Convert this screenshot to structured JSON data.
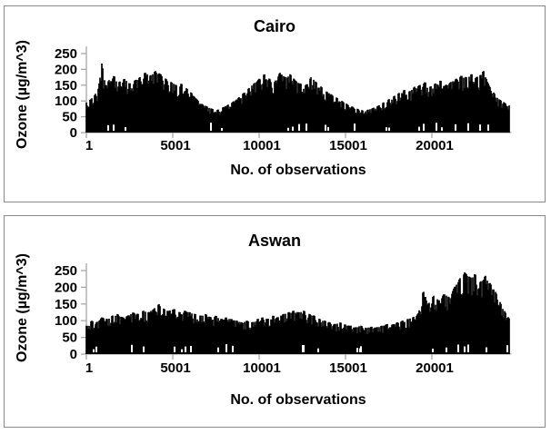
{
  "window": {
    "background": "#ffffff",
    "panel_border_color": "#898989"
  },
  "chart_data": [
    {
      "type": "area",
      "title": "Cairo",
      "xlabel": "No. of observations",
      "ylabel": "Ozone (µg/m^3)",
      "x_tick_values": [
        1,
        5001,
        10001,
        15001,
        20001
      ],
      "x_tick_labels": [
        "1",
        "5001",
        "10001",
        "15001",
        "20001"
      ],
      "y_ticks": [
        0,
        50,
        100,
        150,
        200,
        250
      ],
      "xlim": [
        1,
        24500
      ],
      "ylim": [
        0,
        250
      ],
      "grid": false,
      "legend": "none",
      "axis_color": "#a6a6a6",
      "series_color": "#000000",
      "seed": 7,
      "envelope_points": [
        [
          1,
          95
        ],
        [
          250,
          105
        ],
        [
          500,
          120
        ],
        [
          700,
          140
        ],
        [
          900,
          220
        ],
        [
          1100,
          150
        ],
        [
          1300,
          165
        ],
        [
          1600,
          180
        ],
        [
          1900,
          160
        ],
        [
          2200,
          170
        ],
        [
          2500,
          155
        ],
        [
          2800,
          165
        ],
        [
          3100,
          175
        ],
        [
          3400,
          190
        ],
        [
          3700,
          180
        ],
        [
          4000,
          195
        ],
        [
          4300,
          185
        ],
        [
          4600,
          170
        ],
        [
          4900,
          160
        ],
        [
          5200,
          150
        ],
        [
          5500,
          155
        ],
        [
          5800,
          140
        ],
        [
          6100,
          125
        ],
        [
          6400,
          105
        ],
        [
          6700,
          90
        ],
        [
          7000,
          82
        ],
        [
          7300,
          75
        ],
        [
          7600,
          72
        ],
        [
          7900,
          80
        ],
        [
          8200,
          88
        ],
        [
          8500,
          98
        ],
        [
          8800,
          110
        ],
        [
          9100,
          125
        ],
        [
          9400,
          140
        ],
        [
          9700,
          155
        ],
        [
          10000,
          170
        ],
        [
          10300,
          185
        ],
        [
          10600,
          170
        ],
        [
          10900,
          160
        ],
        [
          11200,
          190
        ],
        [
          11500,
          175
        ],
        [
          11800,
          185
        ],
        [
          12100,
          165
        ],
        [
          12400,
          155
        ],
        [
          12700,
          150
        ],
        [
          13000,
          175
        ],
        [
          13300,
          160
        ],
        [
          13600,
          145
        ],
        [
          13900,
          130
        ],
        [
          14200,
          120
        ],
        [
          14500,
          110
        ],
        [
          14800,
          100
        ],
        [
          15100,
          90
        ],
        [
          15400,
          82
        ],
        [
          15700,
          75
        ],
        [
          16000,
          70
        ],
        [
          16300,
          72
        ],
        [
          16600,
          78
        ],
        [
          16900,
          85
        ],
        [
          17200,
          95
        ],
        [
          17500,
          105
        ],
        [
          17800,
          115
        ],
        [
          18100,
          125
        ],
        [
          18400,
          135
        ],
        [
          18700,
          130
        ],
        [
          19000,
          145
        ],
        [
          19300,
          150
        ],
        [
          19600,
          160
        ],
        [
          19900,
          145
        ],
        [
          20200,
          155
        ],
        [
          20500,
          165
        ],
        [
          20800,
          150
        ],
        [
          21100,
          160
        ],
        [
          21400,
          170
        ],
        [
          21700,
          180
        ],
        [
          22000,
          175
        ],
        [
          22300,
          185
        ],
        [
          22600,
          175
        ],
        [
          23000,
          195
        ],
        [
          23300,
          150
        ],
        [
          23600,
          125
        ],
        [
          23900,
          105
        ],
        [
          24200,
          95
        ],
        [
          24500,
          85
        ]
      ]
    },
    {
      "type": "area",
      "title": "Aswan",
      "xlabel": "No. of observations",
      "ylabel": "Ozone (µg/m^3)",
      "x_tick_values": [
        1,
        5001,
        10001,
        15001,
        20001
      ],
      "x_tick_labels": [
        "1",
        "5001",
        "10001",
        "15001",
        "20001"
      ],
      "y_ticks": [
        0,
        50,
        100,
        150,
        200,
        250
      ],
      "xlim": [
        1,
        24500
      ],
      "ylim": [
        0,
        250
      ],
      "grid": false,
      "legend": "none",
      "axis_color": "#a6a6a6",
      "series_color": "#000000",
      "seed": 13,
      "envelope_points": [
        [
          1,
          85
        ],
        [
          300,
          100
        ],
        [
          600,
          95
        ],
        [
          900,
          110
        ],
        [
          1200,
          105
        ],
        [
          1500,
          115
        ],
        [
          1800,
          120
        ],
        [
          2100,
          110
        ],
        [
          2400,
          115
        ],
        [
          2700,
          125
        ],
        [
          3000,
          120
        ],
        [
          3300,
          130
        ],
        [
          3600,
          125
        ],
        [
          3900,
          135
        ],
        [
          4200,
          150
        ],
        [
          4500,
          135
        ],
        [
          4800,
          130
        ],
        [
          5100,
          135
        ],
        [
          5400,
          125
        ],
        [
          5700,
          130
        ],
        [
          6000,
          125
        ],
        [
          6300,
          120
        ],
        [
          6600,
          115
        ],
        [
          6900,
          120
        ],
        [
          7200,
          110
        ],
        [
          7500,
          115
        ],
        [
          7800,
          105
        ],
        [
          8100,
          110
        ],
        [
          8400,
          105
        ],
        [
          8700,
          100
        ],
        [
          9000,
          95
        ],
        [
          9300,
          100
        ],
        [
          9600,
          95
        ],
        [
          9900,
          105
        ],
        [
          10200,
          110
        ],
        [
          10500,
          105
        ],
        [
          10800,
          115
        ],
        [
          11100,
          110
        ],
        [
          11400,
          120
        ],
        [
          11700,
          125
        ],
        [
          12000,
          130
        ],
        [
          12300,
          125
        ],
        [
          12600,
          130
        ],
        [
          12900,
          120
        ],
        [
          13200,
          115
        ],
        [
          13500,
          105
        ],
        [
          13800,
          100
        ],
        [
          14100,
          95
        ],
        [
          14400,
          90
        ],
        [
          14700,
          95
        ],
        [
          15000,
          88
        ],
        [
          15300,
          85
        ],
        [
          15600,
          80
        ],
        [
          15900,
          85
        ],
        [
          16200,
          78
        ],
        [
          16500,
          82
        ],
        [
          16800,
          80
        ],
        [
          17100,
          85
        ],
        [
          17400,
          90
        ],
        [
          17700,
          88
        ],
        [
          18000,
          95
        ],
        [
          18300,
          100
        ],
        [
          18600,
          105
        ],
        [
          18900,
          110
        ],
        [
          19200,
          120
        ],
        [
          19500,
          190
        ],
        [
          19800,
          150
        ],
        [
          20100,
          175
        ],
        [
          20400,
          160
        ],
        [
          20700,
          180
        ],
        [
          21000,
          170
        ],
        [
          21300,
          200
        ],
        [
          21600,
          225
        ],
        [
          21900,
          245
        ],
        [
          22200,
          230
        ],
        [
          22500,
          240
        ],
        [
          22800,
          215
        ],
        [
          23100,
          235
        ],
        [
          23400,
          210
        ],
        [
          23700,
          185
        ],
        [
          24000,
          150
        ],
        [
          24250,
          125
        ],
        [
          24500,
          105
        ]
      ]
    }
  ]
}
